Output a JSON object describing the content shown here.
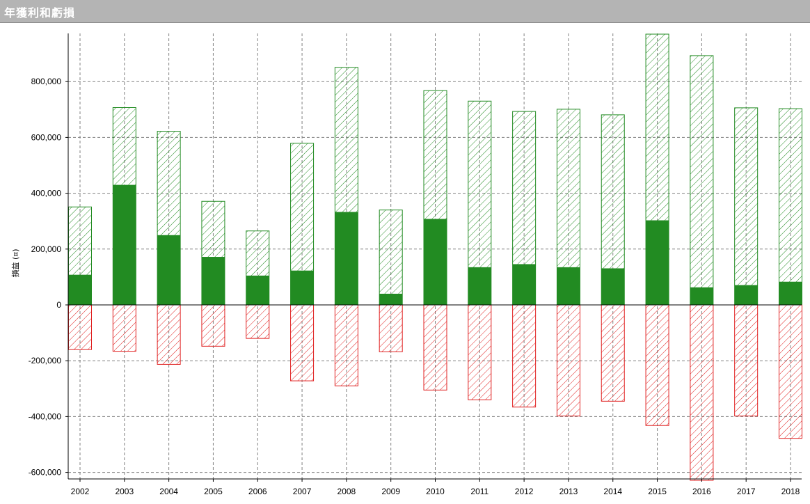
{
  "window": {
    "title": "年獲利和虧損"
  },
  "chart_data": {
    "type": "bar",
    "title": "年獲利和虧損",
    "ylabel": "損益 (¤)",
    "xlabel": "",
    "categories": [
      "2002",
      "2003",
      "2004",
      "2005",
      "2006",
      "2007",
      "2008",
      "2009",
      "2010",
      "2011",
      "2012",
      "2013",
      "2014",
      "2015",
      "2016",
      "2017",
      "2018"
    ],
    "ylim": [
      -625000,
      975000
    ],
    "yticks": [
      -600000,
      -400000,
      -200000,
      0,
      200000,
      400000,
      600000,
      800000
    ],
    "ytick_labels": [
      "-600,000",
      "-400,000",
      "-200,000",
      "0",
      "200,000",
      "400,000",
      "600,000",
      "800,000"
    ],
    "grid": true,
    "colors": {
      "net": "#228B22",
      "gross_profit": "#228B22",
      "gross_loss": "#e02020"
    },
    "series": [
      {
        "values": [
          108000,
          430000,
          250000,
          172000,
          105000,
          123000,
          333000,
          40000,
          308000,
          135000,
          146000,
          135000,
          131000,
          303000,
          63000,
          71000,
          83000
        ]
      },
      {
        "values": [
          351000,
          707000,
          622000,
          371000,
          265000,
          579000,
          851000,
          340000,
          768000,
          730000,
          693000,
          701000,
          681000,
          970000,
          893000,
          706000,
          703000
        ]
      },
      {
        "values": [
          -160000,
          -166000,
          -213000,
          -148000,
          -120000,
          -272000,
          -290000,
          -168000,
          -305000,
          -340000,
          -366000,
          -398000,
          -345000,
          -432000,
          -630000,
          -398000,
          -478000
        ]
      }
    ]
  }
}
